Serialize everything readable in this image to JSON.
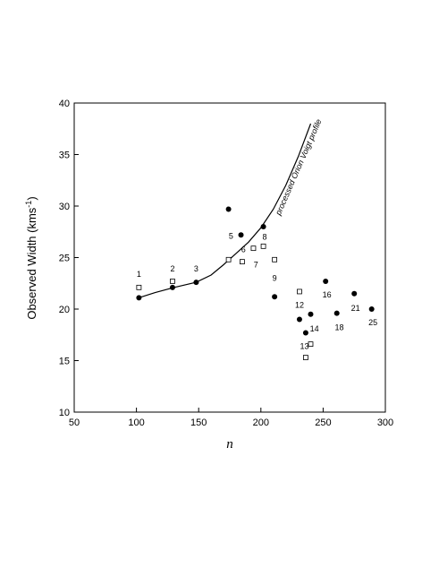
{
  "chart_data": {
    "type": "scatter",
    "xlabel": "n",
    "ylabel": "Observed Width (kms",
    "ylabel_sup": "-1",
    "ylabel_close": ")",
    "xlim": [
      50,
      300
    ],
    "ylim": [
      10,
      40
    ],
    "x_ticks": [
      50,
      100,
      150,
      200,
      250,
      300
    ],
    "y_ticks": [
      10,
      15,
      20,
      25,
      30,
      35,
      40
    ],
    "grid": false,
    "series": [
      {
        "marker": "filled-circle",
        "points": [
          {
            "x": 102,
            "y": 21.1
          },
          {
            "x": 129,
            "y": 22.1
          },
          {
            "x": 148,
            "y": 22.6
          },
          {
            "x": 174,
            "y": 29.7
          },
          {
            "x": 184,
            "y": 27.2
          },
          {
            "x": 202,
            "y": 28.0
          },
          {
            "x": 211,
            "y": 21.2
          },
          {
            "x": 231,
            "y": 19.0
          },
          {
            "x": 236,
            "y": 17.7
          },
          {
            "x": 240,
            "y": 19.5
          },
          {
            "x": 252,
            "y": 22.7
          },
          {
            "x": 261,
            "y": 19.6
          },
          {
            "x": 275,
            "y": 21.5
          },
          {
            "x": 289,
            "y": 20.0
          }
        ]
      },
      {
        "marker": "open-square",
        "points": [
          {
            "x": 102,
            "y": 22.1
          },
          {
            "x": 129,
            "y": 22.7
          },
          {
            "x": 174,
            "y": 24.8
          },
          {
            "x": 185,
            "y": 24.6
          },
          {
            "x": 194,
            "y": 25.9
          },
          {
            "x": 202,
            "y": 26.1
          },
          {
            "x": 211,
            "y": 24.8
          },
          {
            "x": 231,
            "y": 21.7
          },
          {
            "x": 236,
            "y": 15.3
          },
          {
            "x": 240,
            "y": 16.6
          }
        ]
      }
    ],
    "point_labels": [
      {
        "text": "1",
        "x": 102,
        "y": 23.4
      },
      {
        "text": "2",
        "x": 129,
        "y": 23.9
      },
      {
        "text": "3",
        "x": 148,
        "y": 23.9
      },
      {
        "text": "5",
        "x": 176,
        "y": 27.1
      },
      {
        "text": "6",
        "x": 186,
        "y": 25.8
      },
      {
        "text": "7",
        "x": 196,
        "y": 24.3
      },
      {
        "text": "8",
        "x": 203,
        "y": 27.0
      },
      {
        "text": "9",
        "x": 211,
        "y": 23.0
      },
      {
        "text": "12",
        "x": 231,
        "y": 20.4
      },
      {
        "text": "16",
        "x": 253,
        "y": 21.4
      },
      {
        "text": "14",
        "x": 243,
        "y": 18.1
      },
      {
        "text": "18",
        "x": 263,
        "y": 18.2
      },
      {
        "text": "21",
        "x": 276,
        "y": 20.1
      },
      {
        "text": "25",
        "x": 290,
        "y": 18.7
      },
      {
        "text": "13",
        "x": 235,
        "y": 16.4
      }
    ],
    "curve": {
      "label": "processed Orion Voigt profile",
      "points": [
        {
          "x": 102,
          "y": 21.1
        },
        {
          "x": 115,
          "y": 21.6
        },
        {
          "x": 130,
          "y": 22.1
        },
        {
          "x": 148,
          "y": 22.6
        },
        {
          "x": 160,
          "y": 23.3
        },
        {
          "x": 170,
          "y": 24.3
        },
        {
          "x": 180,
          "y": 25.4
        },
        {
          "x": 190,
          "y": 26.5
        },
        {
          "x": 200,
          "y": 27.9
        },
        {
          "x": 210,
          "y": 29.7
        },
        {
          "x": 220,
          "y": 32.0
        },
        {
          "x": 230,
          "y": 34.8
        },
        {
          "x": 240,
          "y": 38.0
        }
      ]
    }
  }
}
